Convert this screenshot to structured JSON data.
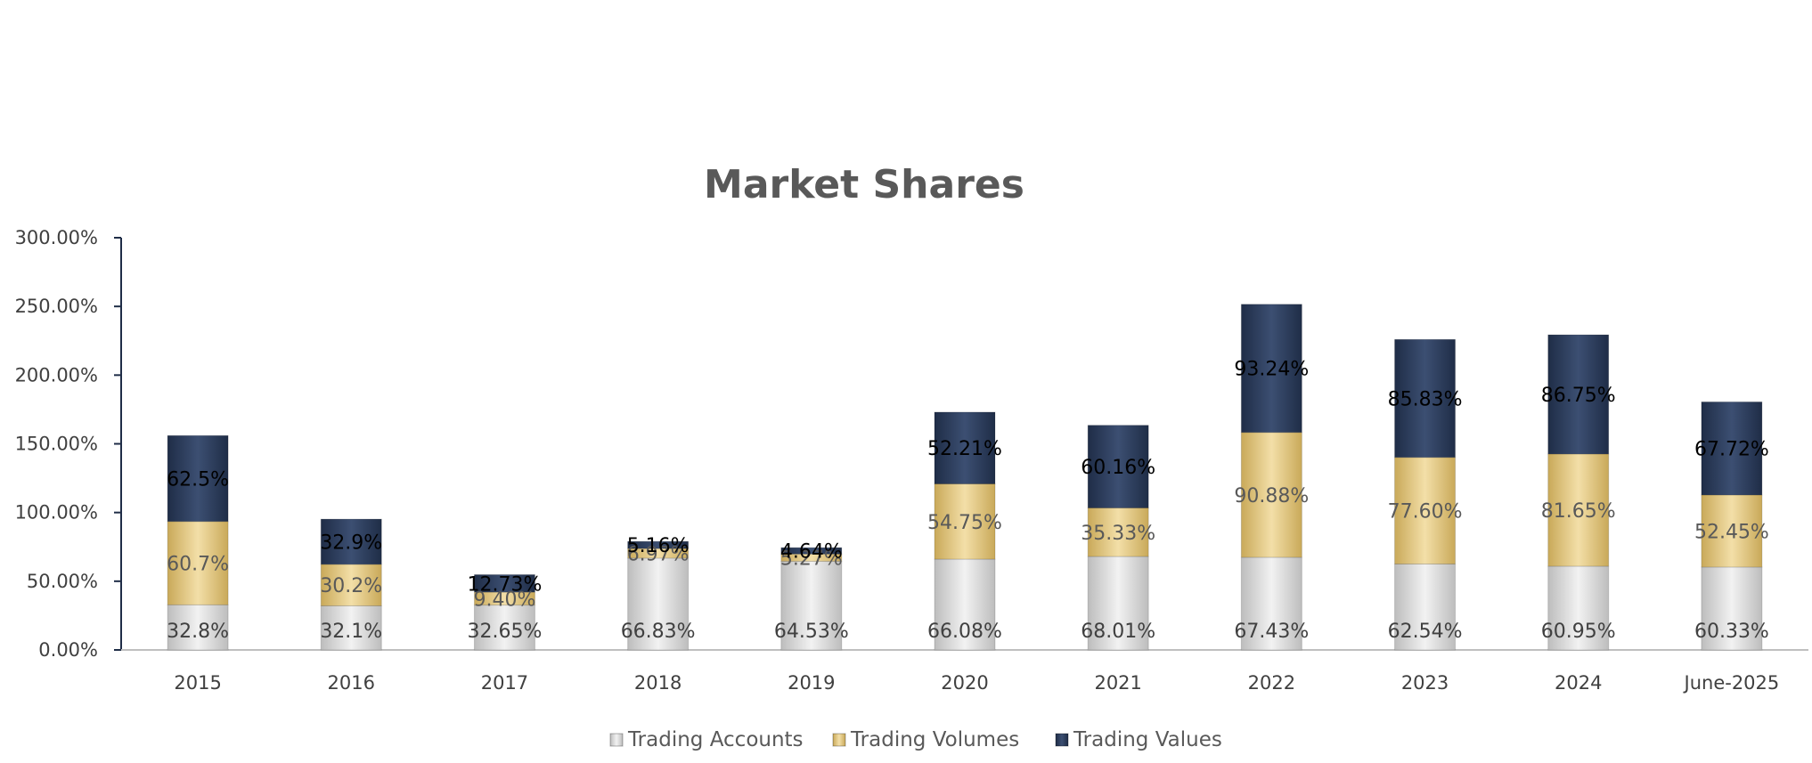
{
  "chart_data": {
    "type": "bar",
    "stacked": true,
    "title": "Market Shares",
    "xlabel": "",
    "ylabel": "",
    "categories": [
      "2015",
      "2016",
      "2017",
      "2018",
      "2019",
      "2020",
      "2021",
      "2022",
      "2023",
      "2024",
      "June-2025"
    ],
    "ylim": [
      0,
      300
    ],
    "yticks": [
      "0.00%",
      "50.00%",
      "100.00%",
      "150.00%",
      "200.00%",
      "250.00%",
      "300.00%"
    ],
    "grid": false,
    "legend_position": "bottom",
    "series": [
      {
        "name": "Trading Accounts",
        "color": "#d9d9d9",
        "values": [
          32.8,
          32.1,
          32.65,
          66.83,
          64.53,
          66.08,
          68.01,
          67.43,
          62.54,
          60.95,
          60.33
        ],
        "labels": [
          "32.8%",
          "32.1%",
          "32.65%",
          "66.83%",
          "64.53%",
          "66.08%",
          "68.01%",
          "67.43%",
          "62.54%",
          "60.95%",
          "60.33%"
        ]
      },
      {
        "name": "Trading Volumes",
        "color": "#e3c785",
        "values": [
          60.7,
          30.2,
          9.4,
          6.97,
          5.27,
          54.75,
          35.33,
          90.88,
          77.6,
          81.65,
          52.45
        ],
        "labels": [
          "60.7%",
          "30.2%",
          "9.40%",
          "6.97%",
          "5.27%",
          "54.75%",
          "35.33%",
          "90.88%",
          "77.60%",
          "81.65%",
          "52.45%"
        ]
      },
      {
        "name": "Trading Values",
        "color": "#2e3f5f",
        "values": [
          62.5,
          32.9,
          12.73,
          5.16,
          4.64,
          52.21,
          60.16,
          93.24,
          85.83,
          86.75,
          67.72
        ],
        "labels": [
          "62.5%",
          "32.9%",
          "12.73%",
          "5.16%",
          "4.64%",
          "52.21%",
          "60.16%",
          "93.24%",
          "85.83%",
          "86.75%",
          "67.72%"
        ]
      }
    ]
  }
}
